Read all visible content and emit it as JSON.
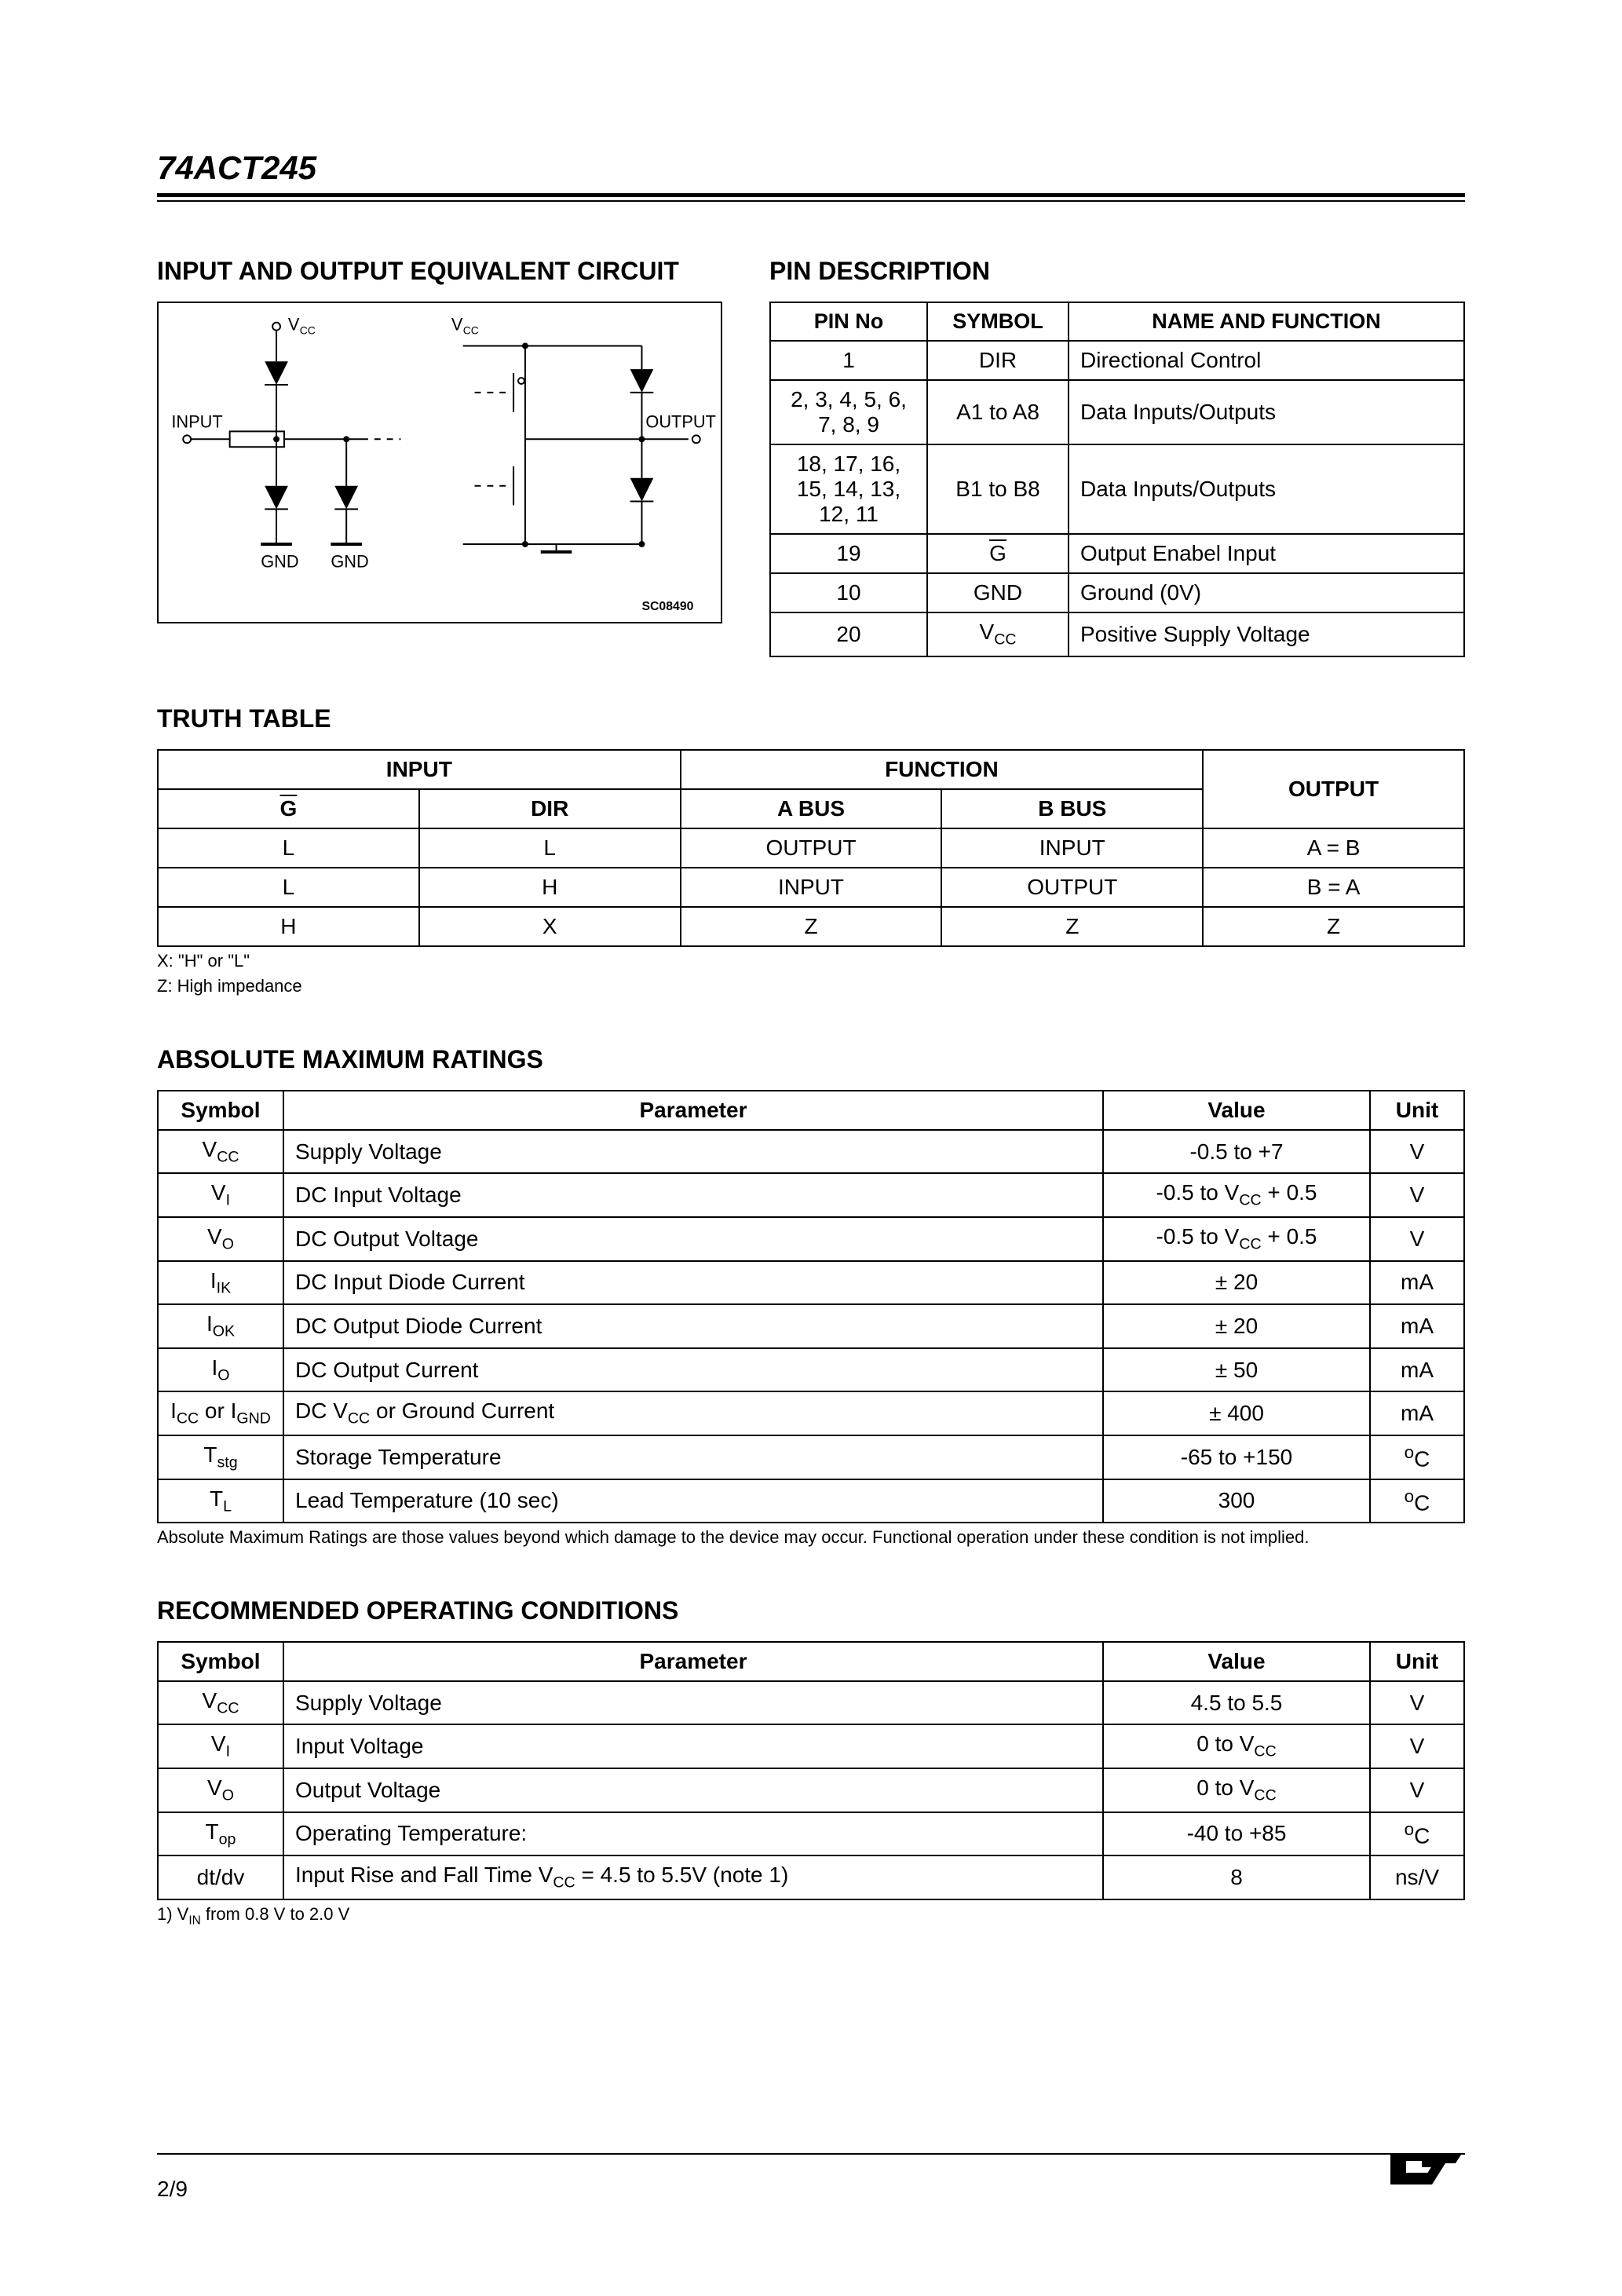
{
  "part_number": "74ACT245",
  "sections": {
    "circuit_title": "INPUT AND OUTPUT EQUIVALENT CIRCUIT",
    "pin_title": "PIN DESCRIPTION",
    "truth_title": "TRUTH TABLE",
    "amr_title": "ABSOLUTE MAXIMUM RATINGS",
    "roc_title": "RECOMMENDED OPERATING CONDITIONS"
  },
  "circuit_labels": {
    "vcc1": "V",
    "vcc1_sub": "CC",
    "vcc2": "V",
    "vcc2_sub": "CC",
    "input": "INPUT",
    "output": "OUTPUT",
    "gnd1": "GND",
    "gnd2": "GND",
    "code": "SC08490"
  },
  "pin_table": {
    "headers": [
      "PIN No",
      "SYMBOL",
      "NAME AND FUNCTION"
    ],
    "rows": [
      {
        "pin": "1",
        "sym": "DIR",
        "func": "Directional Control"
      },
      {
        "pin": "2, 3, 4, 5, 6, 7, 8, 9",
        "sym": "A1 to A8",
        "func": "Data Inputs/Outputs"
      },
      {
        "pin": "18, 17, 16, 15, 14, 13, 12, 11",
        "sym": "B1 to B8",
        "func": "Data Inputs/Outputs"
      },
      {
        "pin": "19",
        "sym_ovl": "G",
        "func": "Output Enabel Input"
      },
      {
        "pin": "10",
        "sym": "GND",
        "func": "Ground (0V)"
      },
      {
        "pin": "20",
        "sym_html": "V<span class='sub'>CC</span>",
        "func": "Positive Supply Voltage"
      }
    ]
  },
  "truth_table": {
    "top_headers": [
      "INPUT",
      "FUNCTION",
      "OUTPUT"
    ],
    "sub_headers": [
      "G",
      "DIR",
      "A BUS",
      "B BUS"
    ],
    "rows": [
      [
        "L",
        "L",
        "OUTPUT",
        "INPUT",
        "A = B"
      ],
      [
        "L",
        "H",
        "INPUT",
        "OUTPUT",
        "B = A"
      ],
      [
        "H",
        "X",
        "Z",
        "Z",
        "Z"
      ]
    ],
    "note1": "X: \"H\" or \"L\"",
    "note2": "Z: High impedance"
  },
  "amr_table": {
    "headers": [
      "Symbol",
      "Parameter",
      "Value",
      "Unit"
    ],
    "rows": [
      {
        "sym_html": "V<span class='sub'>CC</span>",
        "param": "Supply Voltage",
        "value": "-0.5 to +7",
        "unit": "V"
      },
      {
        "sym_html": "V<span class='sub'>I</span>",
        "param": "DC Input Voltage",
        "value_html": "-0.5 to V<span class='sub'>CC</span> + 0.5",
        "unit": "V"
      },
      {
        "sym_html": "V<span class='sub'>O</span>",
        "param": "DC Output Voltage",
        "value_html": "-0.5 to V<span class='sub'>CC</span> + 0.5",
        "unit": "V"
      },
      {
        "sym_html": "I<span class='sub'>IK</span>",
        "param": "DC Input Diode Current",
        "value": "± 20",
        "unit": "mA"
      },
      {
        "sym_html": "I<span class='sub'>OK</span>",
        "param": "DC Output Diode Current",
        "value": "± 20",
        "unit": "mA"
      },
      {
        "sym_html": "I<span class='sub'>O</span>",
        "param": "DC Output Current",
        "value": "± 50",
        "unit": "mA"
      },
      {
        "sym_html": "I<span class='sub'>CC</span> or I<span class='sub'>GND</span>",
        "param_html": "DC V<span class='sub'>CC</span> or Ground Current",
        "value": "± 400",
        "unit": "mA"
      },
      {
        "sym_html": "T<span class='sub'>stg</span>",
        "param": "Storage Temperature",
        "value": "-65 to +150",
        "unit_html": "<span style='font-size:0.8em;vertical-align:super'>o</span>C"
      },
      {
        "sym_html": "T<span class='sub'>L</span>",
        "param": "Lead Temperature (10 sec)",
        "value": "300",
        "unit_html": "<span style='font-size:0.8em;vertical-align:super'>o</span>C"
      }
    ],
    "note": "Absolute Maximum Ratings are those values beyond which damage to the device may occur. Functional operation under these condition is not implied."
  },
  "roc_table": {
    "headers": [
      "Symbol",
      "Parameter",
      "Value",
      "Unit"
    ],
    "rows": [
      {
        "sym_html": "V<span class='sub'>CC</span>",
        "param": "Supply Voltage",
        "value": "4.5 to 5.5",
        "unit": "V"
      },
      {
        "sym_html": "V<span class='sub'>I</span>",
        "param": "Input Voltage",
        "value_html": "0 to V<span class='sub'>CC</span>",
        "unit": "V"
      },
      {
        "sym_html": "V<span class='sub'>O</span>",
        "param": "Output Voltage",
        "value_html": "0 to V<span class='sub'>CC</span>",
        "unit": "V"
      },
      {
        "sym_html": "T<span class='sub'>op</span>",
        "param": "Operating Temperature:",
        "value": "-40 to +85",
        "unit_html": "<span style='font-size:0.8em;vertical-align:super'>o</span>C"
      },
      {
        "sym": "dt/dv",
        "param_html": "Input Rise and Fall Time V<span class='sub'>CC</span> = 4.5 to 5.5V (note 1)",
        "value": "8",
        "unit": "ns/V"
      }
    ],
    "note_html": "1) V<span class='sub'>IN</span> from 0.8 V to 2.0 V"
  },
  "footer": {
    "page": "2/9",
    "logo": "ST"
  }
}
